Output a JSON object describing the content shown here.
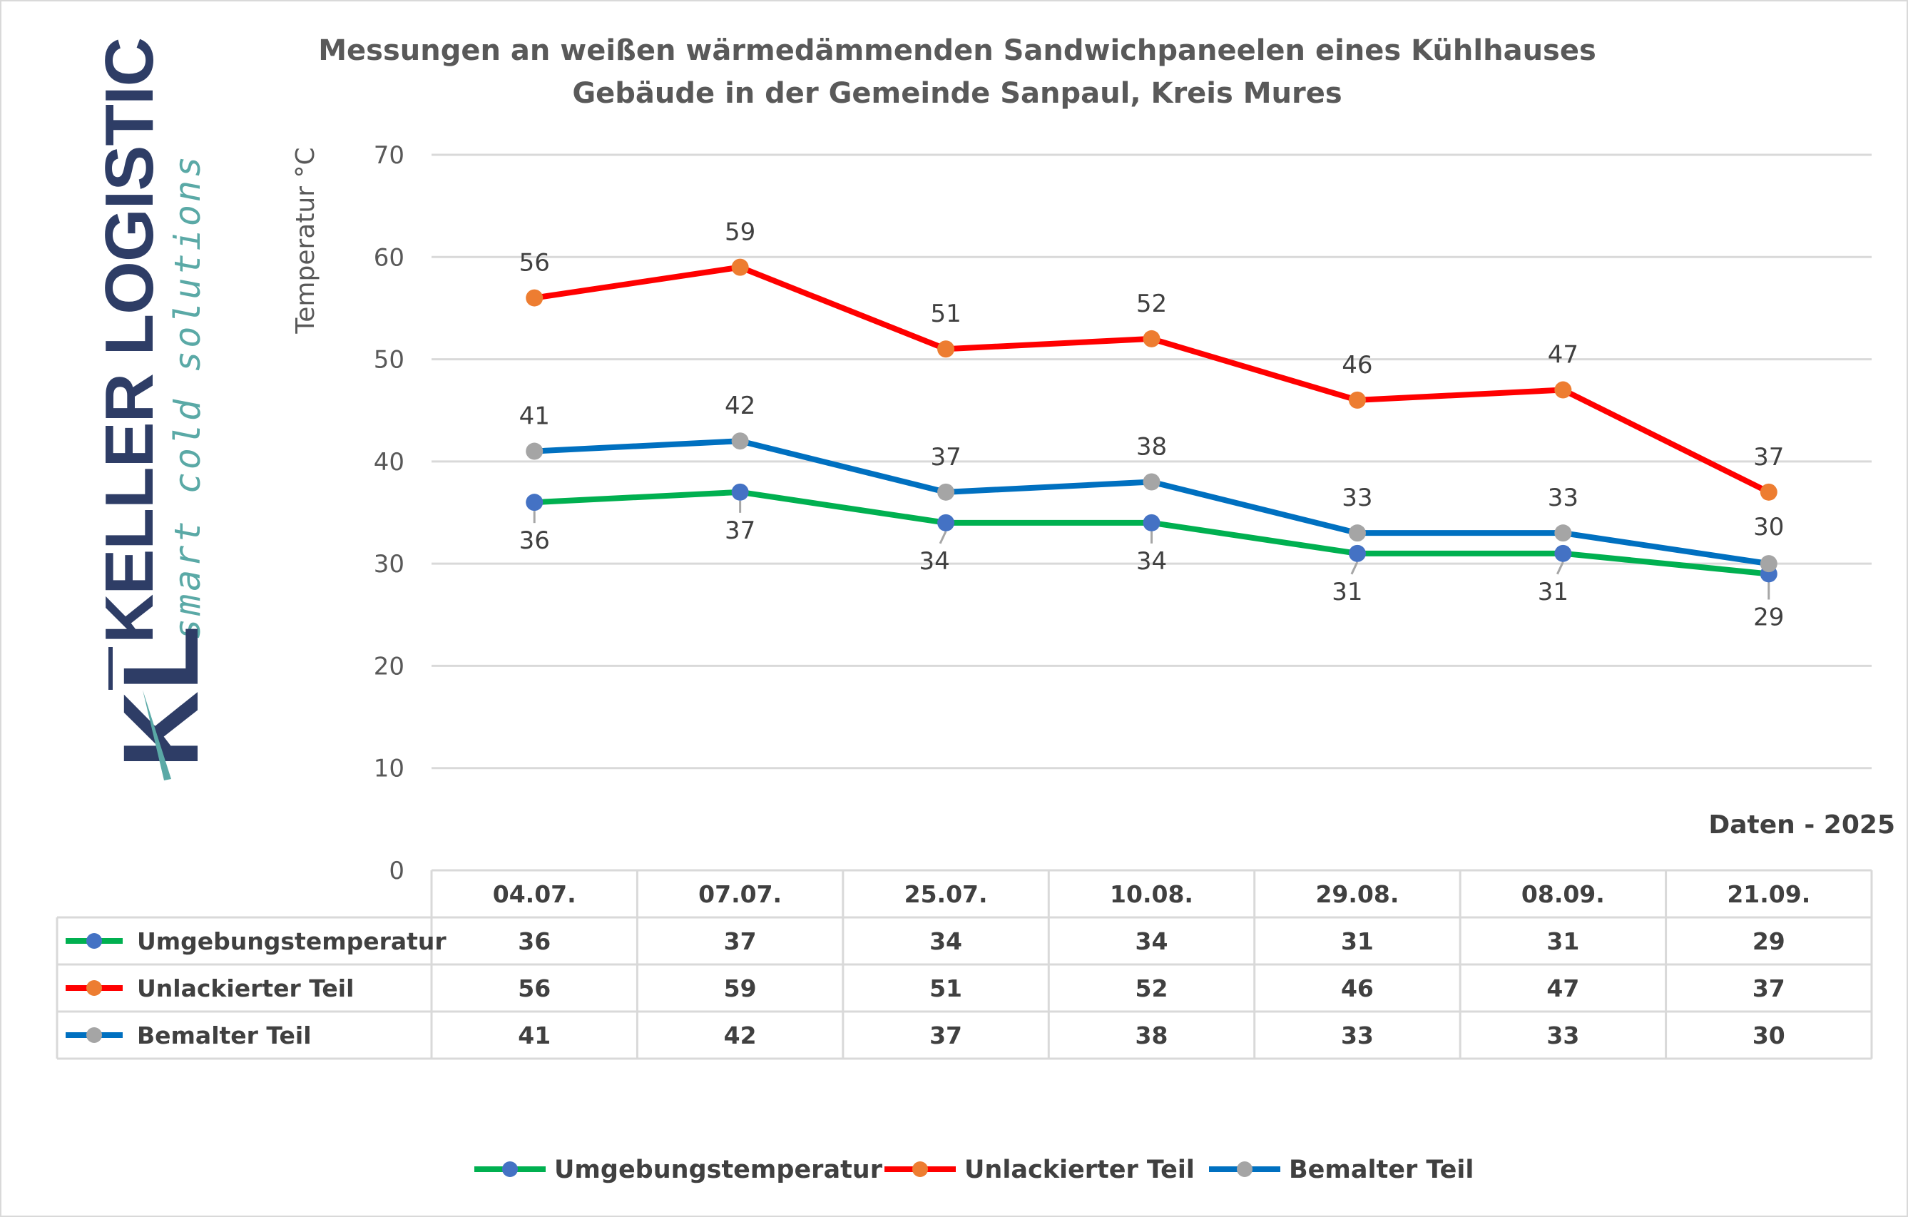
{
  "colors": {
    "umgebung_line": "#00b050",
    "umgebung_marker": "#4472c4",
    "unlack_line": "#ff0000",
    "unlack_marker": "#ed7d31",
    "bemalt_line": "#0070c0",
    "bemalt_marker": "#a5a5a5",
    "grid": "#d9d9d9"
  },
  "logo": {
    "brand": "KELLER LOGISTIC",
    "tagline": "smart cold solutions",
    "monogram": "KL"
  },
  "chart_data": {
    "type": "line",
    "title_line1": "Messungen an weißen wärmedämmenden Sandwichpaneelen eines Kühlhauses",
    "title_line2": "Gebäude in der Gemeinde Sanpaul, Kreis Mures",
    "ylabel": "Temperatur °C",
    "xlabel": "Daten - 2025",
    "ylim": [
      0,
      70
    ],
    "yticks": [
      "0",
      "10",
      "20",
      "30",
      "40",
      "50",
      "60",
      "70"
    ],
    "grid": true,
    "legend_position": "bottom",
    "categories": [
      "04.07.",
      "07.07.",
      "25.07.",
      "10.08.",
      "29.08.",
      "08.09.",
      "21.09."
    ],
    "series": [
      {
        "name": "Umgebungstemperatur",
        "values": [
          36,
          37,
          34,
          34,
          31,
          31,
          29
        ],
        "value_labels": [
          "36",
          "37",
          "34",
          "34",
          "31",
          "31",
          "29"
        ],
        "label_position": "below"
      },
      {
        "name": "Unlackierter Teil",
        "values": [
          56,
          59,
          51,
          52,
          46,
          47,
          37
        ],
        "value_labels": [
          "56",
          "59",
          "51",
          "52",
          "46",
          "47",
          "37"
        ],
        "label_position": "above"
      },
      {
        "name": "Bemalter Teil",
        "values": [
          41,
          42,
          37,
          38,
          33,
          33,
          30
        ],
        "value_labels": [
          "41",
          "42",
          "37",
          "38",
          "33",
          "33",
          "30"
        ],
        "label_position": "above"
      }
    ]
  }
}
